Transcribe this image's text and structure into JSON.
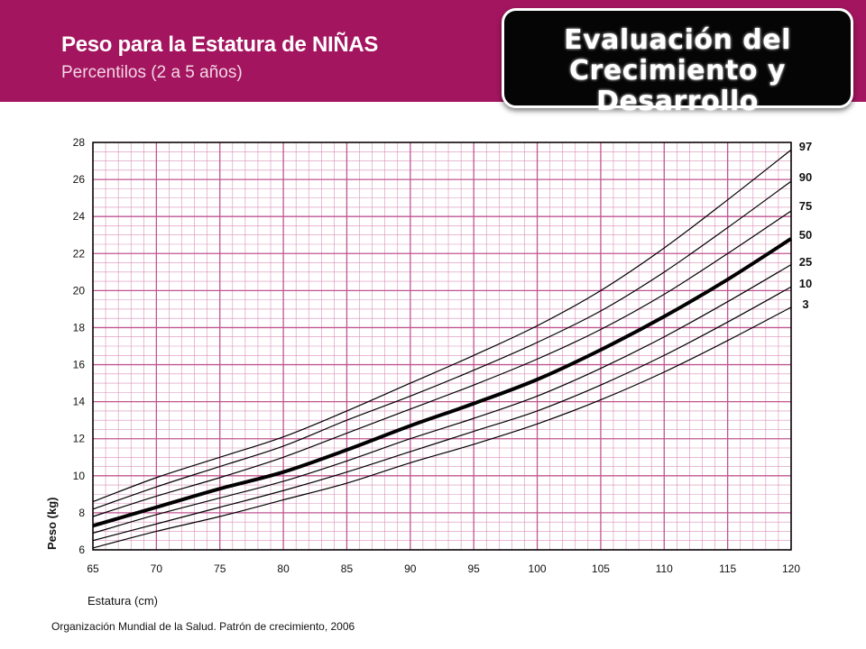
{
  "header": {
    "title": "Peso para la Estatura de NIÑAS",
    "subtitle": "Percentilos (2 a 5 años)",
    "badge_line1": "Evaluación del",
    "badge_line2": "Crecimiento y Desarrollo",
    "bg_color": "#a3155f"
  },
  "chart_data": {
    "type": "line",
    "xlabel": "Estatura (cm)",
    "ylabel": "Peso (kg)",
    "xlim": [
      65,
      120
    ],
    "ylim": [
      6,
      28
    ],
    "x_ticks": [
      65,
      70,
      75,
      80,
      85,
      90,
      95,
      100,
      105,
      110,
      115,
      120
    ],
    "y_ticks": [
      6,
      8,
      10,
      12,
      14,
      16,
      18,
      20,
      22,
      24,
      26,
      28
    ],
    "grid": true,
    "grid_color": "#d98fb8",
    "x": [
      65,
      70,
      75,
      80,
      85,
      90,
      95,
      100,
      105,
      110,
      115,
      120
    ],
    "series": [
      {
        "name": "97",
        "values": [
          8.6,
          9.9,
          11.0,
          12.1,
          13.5,
          15.0,
          16.5,
          18.1,
          20.0,
          22.3,
          24.9,
          27.6
        ]
      },
      {
        "name": "90",
        "values": [
          8.2,
          9.4,
          10.5,
          11.6,
          13.0,
          14.3,
          15.7,
          17.2,
          18.9,
          21.0,
          23.4,
          25.9
        ]
      },
      {
        "name": "75",
        "values": [
          7.8,
          8.9,
          9.9,
          11.0,
          12.3,
          13.6,
          14.9,
          16.3,
          17.9,
          19.8,
          22.0,
          24.3
        ]
      },
      {
        "name": "50",
        "values": [
          7.3,
          8.3,
          9.3,
          10.2,
          11.4,
          12.7,
          13.9,
          15.2,
          16.8,
          18.6,
          20.6,
          22.8
        ]
      },
      {
        "name": "25",
        "values": [
          6.9,
          7.9,
          8.8,
          9.7,
          10.8,
          12.0,
          13.1,
          14.3,
          15.8,
          17.5,
          19.4,
          21.4
        ]
      },
      {
        "name": "10",
        "values": [
          6.5,
          7.4,
          8.3,
          9.2,
          10.2,
          11.3,
          12.4,
          13.5,
          14.9,
          16.5,
          18.3,
          20.2
        ]
      },
      {
        "name": "3",
        "values": [
          6.1,
          7.0,
          7.8,
          8.7,
          9.6,
          10.7,
          11.7,
          12.8,
          14.1,
          15.6,
          17.3,
          19.1
        ]
      }
    ],
    "highlight_series": "50",
    "legend_placement": "right"
  },
  "footer": {
    "source": "Organización Mundial de la Salud. Patrón de crecimiento, 2006"
  }
}
